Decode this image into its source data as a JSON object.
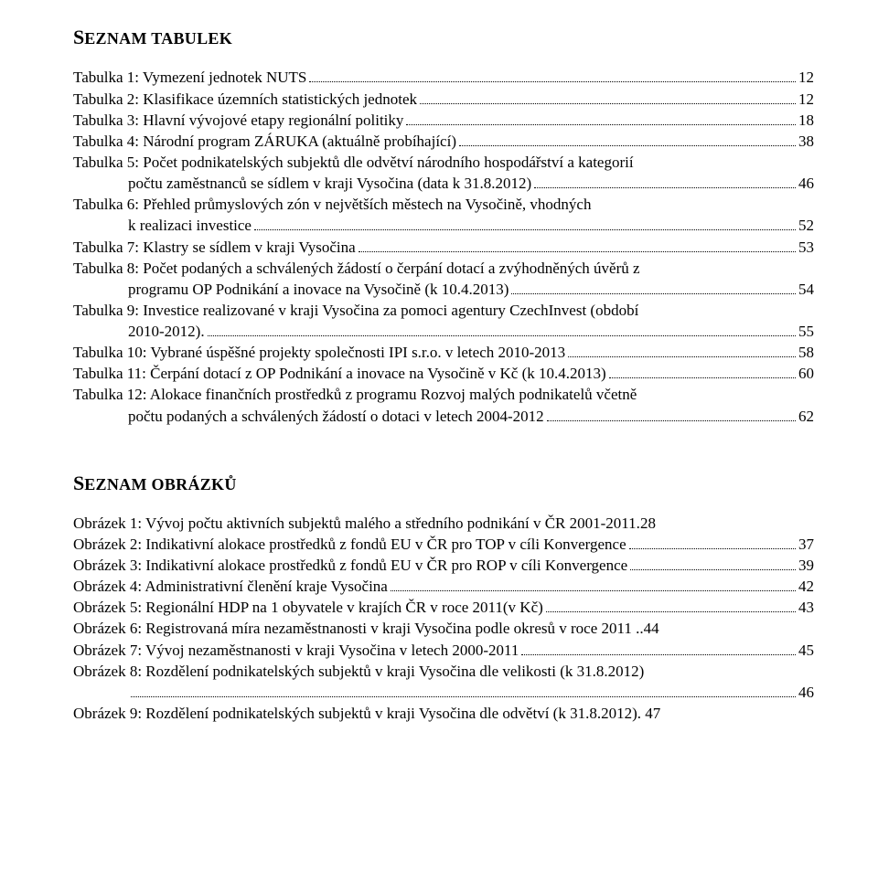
{
  "headings": {
    "tables_caps": "S",
    "tables_rest": "EZNAM TABULEK",
    "figures_caps": "S",
    "figures_rest": "EZNAM OBRÁZKŮ"
  },
  "tables": [
    {
      "label": "Tabulka 1: Vymezení jednotek NUTS",
      "page": "12"
    },
    {
      "label": "Tabulka 2: Klasifikace územních statistických jednotek",
      "page": "12"
    },
    {
      "label": "Tabulka 3: Hlavní vývojové etapy regionální politiky",
      "page": "18"
    },
    {
      "label": "Tabulka 4: Národní program ZÁRUKA (aktuálně probíhající)",
      "page": "38"
    },
    {
      "label": "Tabulka 5: Počet podnikatelských subjektů dle odvětví národního hospodářství a kategorií",
      "cont": "počtu zaměstnanců se sídlem v kraji Vysočina (data k 31.8.2012)",
      "page": "46"
    },
    {
      "label": "Tabulka 6: Přehled průmyslových zón v největších městech na Vysočině, vhodných",
      "cont": "k realizaci investice",
      "page": "52"
    },
    {
      "label": "Tabulka 7: Klastry se sídlem v kraji Vysočina",
      "page": "53"
    },
    {
      "label": "Tabulka 8: Počet podaných a schválených žádostí o čerpání dotací a zvýhodněných úvěrů z",
      "cont": "programu OP Podnikání a inovace na Vysočině (k 10.4.2013)",
      "page": "54"
    },
    {
      "label": "Tabulka 9: Investice realizované v kraji Vysočina za pomoci agentury CzechInvest (období",
      "cont": "2010-2012).",
      "page": "55"
    },
    {
      "label": "Tabulka 10: Vybrané úspěšné projekty společnosti IPI s.r.o. v letech 2010-2013",
      "page": "58"
    },
    {
      "label": "Tabulka 11: Čerpání dotací z OP Podnikání a inovace na Vysočině v Kč (k 10.4.2013)",
      "page": "60"
    },
    {
      "label": "Tabulka 12: Alokace finančních prostředků z programu Rozvoj malých podnikatelů včetně",
      "cont": "počtu podaných a schválených žádostí o dotaci v letech 2004-2012",
      "page": "62"
    }
  ],
  "figures": [
    {
      "label": "Obrázek 1: Vývoj počtu aktivních subjektů malého a středního podnikání v ČR 2001-2011.",
      "page": "28",
      "no_leader": true
    },
    {
      "label": "Obrázek 2: Indikativní alokace prostředků z fondů EU v ČR pro TOP v cíli Konvergence",
      "page": "37"
    },
    {
      "label": "Obrázek 3: Indikativní alokace prostředků z fondů EU v ČR pro ROP v cíli Konvergence",
      "page": "39"
    },
    {
      "label": "Obrázek 4: Administrativní členění kraje Vysočina",
      "page": "42"
    },
    {
      "label": "Obrázek 5: Regionální HDP na 1 obyvatele v krajích ČR v roce 2011(v Kč)",
      "page": "43"
    },
    {
      "label": "Obrázek 6: Registrovaná míra nezaměstnanosti v kraji Vysočina podle okresů v roce 2011 ..",
      "page": "44",
      "no_leader": true
    },
    {
      "label": "Obrázek 7: Vývoj nezaměstnanosti v kraji Vysočina v letech 2000-2011",
      "page": "45"
    },
    {
      "label": "Obrázek 8: Rozdělení podnikatelských subjektů v kraji Vysočina dle velikosti (k 31.8.2012)",
      "cont": "",
      "page": "46"
    },
    {
      "label": "Obrázek 9: Rozdělení podnikatelských subjektů v kraji Vysočina dle odvětví (k 31.8.2012). ",
      "page": "47",
      "no_leader": true
    }
  ]
}
